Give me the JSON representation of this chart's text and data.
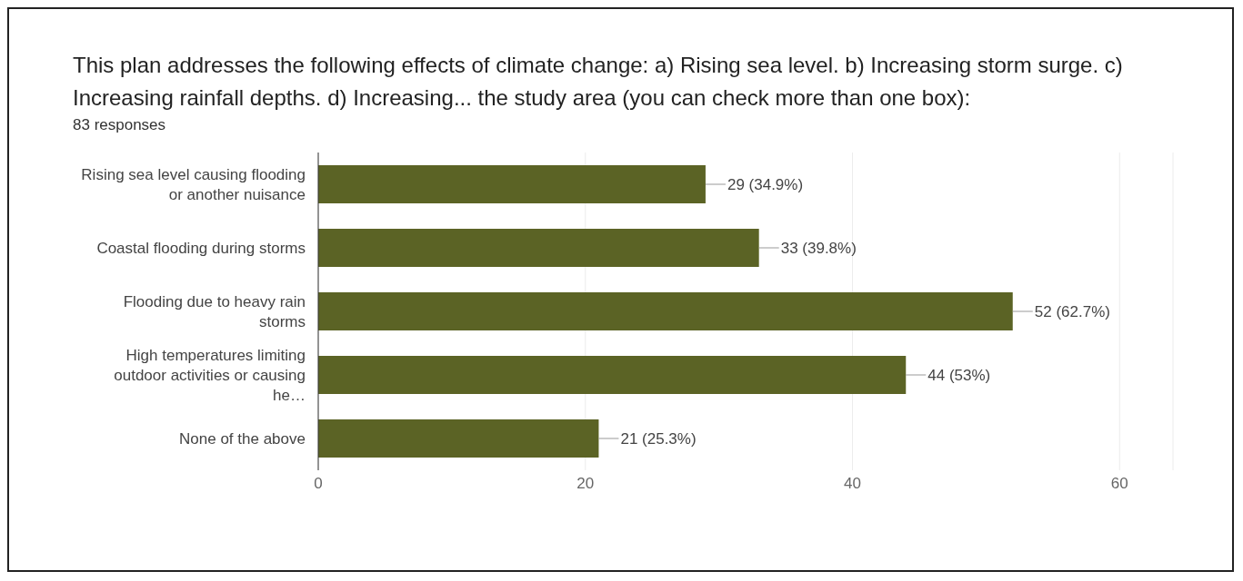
{
  "chart_data": {
    "type": "bar",
    "orientation": "horizontal",
    "title": "This plan addresses the following effects of climate change: a) Rising sea level. b) Increasing storm surge. c) Increasing rainfall depths. d) Increasing... the study area (you can check more than one box):",
    "subtitle": "83 responses",
    "categories": [
      "Rising sea level causing flooding or another nuisance",
      "Coastal flooding during storms",
      "Flooding due to heavy rain storms",
      "High temperatures limiting outdoor activities or causing he…",
      "None of the above"
    ],
    "values": [
      29,
      33,
      52,
      44,
      21
    ],
    "color": "#5b6325",
    "value_labels": [
      "29 (34.9%)",
      "33 (39.8%)",
      "52 (62.7%)",
      "44 (53%)",
      "21 (25.3%)"
    ],
    "xlim": [
      0,
      64
    ],
    "xticks": [
      0,
      20,
      40,
      60
    ],
    "grid": "x"
  }
}
